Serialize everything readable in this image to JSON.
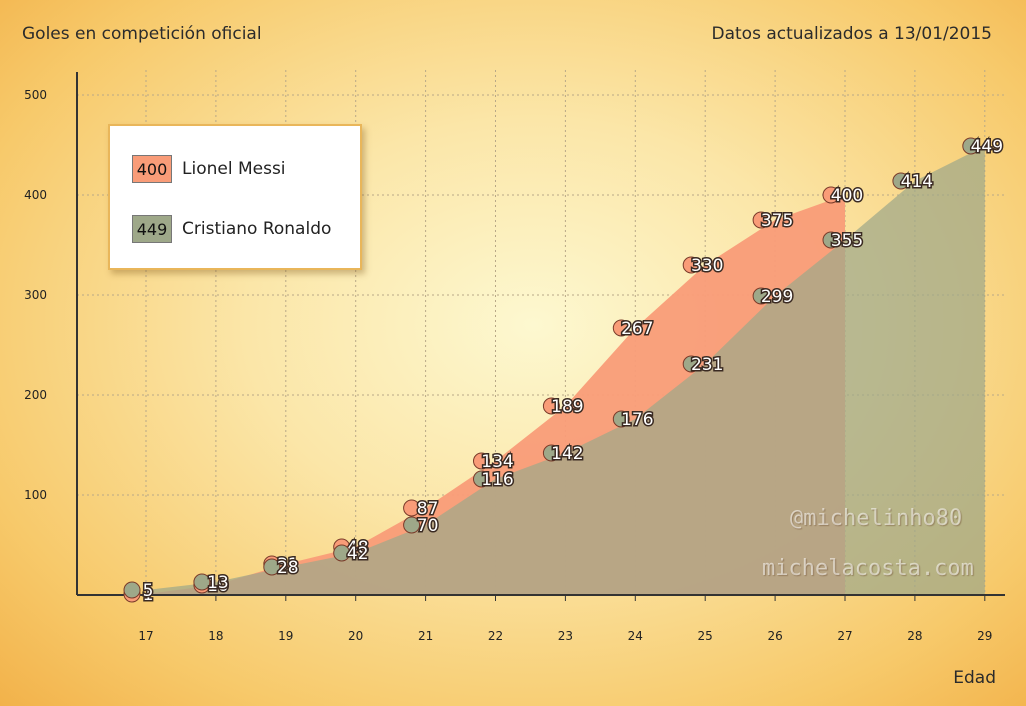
{
  "header": {
    "title": "Goles en competición oficial",
    "date": "Datos actualizados a 13/01/2015"
  },
  "watermark": {
    "handle": "@michelinho80",
    "site": "michelacosta.com"
  },
  "colors": {
    "messi": "#f99c78",
    "ronaldo": "#9ea889",
    "axis": "#333333",
    "grid": "#b8a888"
  },
  "chart_data": {
    "type": "area",
    "xlabel": "Edad",
    "ylabel": "",
    "xlim": [
      17,
      29
    ],
    "ylim": [
      0,
      500
    ],
    "x": [
      17,
      18,
      19,
      20,
      21,
      22,
      23,
      24,
      25,
      26,
      27,
      28,
      29
    ],
    "yticks": [
      100,
      200,
      300,
      400,
      500
    ],
    "grid": true,
    "legend_position": "top-left",
    "series": [
      {
        "name": "Lionel Messi",
        "legend_value": "400",
        "color": "#f99c78",
        "values": [
          1,
          10,
          31,
          48,
          87,
          134,
          189,
          267,
          330,
          375,
          400,
          null,
          null
        ],
        "labels": [
          "1",
          "10",
          "31",
          "48",
          "87",
          "134",
          "189",
          "267",
          "330",
          "375",
          "400",
          "",
          ""
        ]
      },
      {
        "name": "Cristiano Ronaldo",
        "legend_value": "449",
        "color": "#9ea889",
        "values": [
          5,
          13,
          28,
          42,
          70,
          116,
          142,
          176,
          231,
          299,
          355,
          414,
          449
        ],
        "labels": [
          "5",
          "13",
          "28",
          "42",
          "70",
          "116",
          "142",
          "176",
          "231",
          "299",
          "355",
          "414",
          "449"
        ]
      }
    ]
  }
}
